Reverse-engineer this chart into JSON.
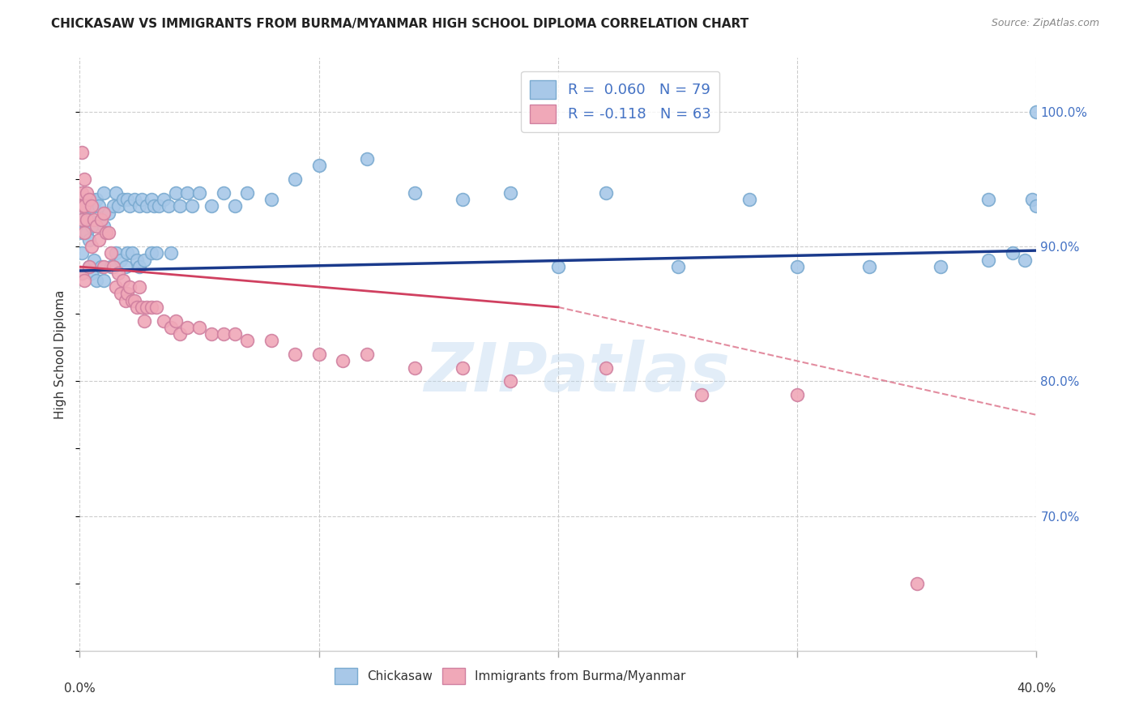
{
  "title": "CHICKASAW VS IMMIGRANTS FROM BURMA/MYANMAR HIGH SCHOOL DIPLOMA CORRELATION CHART",
  "source": "Source: ZipAtlas.com",
  "ylabel": "High School Diploma",
  "ytick_labels": [
    "100.0%",
    "90.0%",
    "80.0%",
    "70.0%"
  ],
  "ytick_values": [
    1.0,
    0.9,
    0.8,
    0.7
  ],
  "xlim": [
    0.0,
    0.4
  ],
  "ylim": [
    0.6,
    1.04
  ],
  "chickasaw_color": "#a8c8e8",
  "burma_color": "#f0a8b8",
  "trendline_chickasaw_color": "#1a3a8c",
  "trendline_burma_color": "#d04060",
  "watermark": "ZIPatlas",
  "chickasaw_scatter_x": [
    0.001,
    0.001,
    0.001,
    0.001,
    0.003,
    0.003,
    0.004,
    0.004,
    0.004,
    0.005,
    0.005,
    0.005,
    0.006,
    0.006,
    0.007,
    0.007,
    0.008,
    0.009,
    0.01,
    0.01,
    0.01,
    0.012,
    0.013,
    0.014,
    0.015,
    0.015,
    0.016,
    0.017,
    0.018,
    0.019,
    0.02,
    0.02,
    0.021,
    0.022,
    0.023,
    0.024,
    0.025,
    0.025,
    0.026,
    0.027,
    0.028,
    0.03,
    0.03,
    0.031,
    0.032,
    0.033,
    0.035,
    0.037,
    0.038,
    0.04,
    0.042,
    0.045,
    0.047,
    0.05,
    0.055,
    0.06,
    0.065,
    0.07,
    0.08,
    0.09,
    0.1,
    0.12,
    0.14,
    0.16,
    0.18,
    0.2,
    0.22,
    0.25,
    0.28,
    0.3,
    0.33,
    0.36,
    0.38,
    0.38,
    0.39,
    0.395,
    0.398,
    0.4,
    0.4
  ],
  "chickasaw_scatter_y": [
    0.92,
    0.91,
    0.895,
    0.88,
    0.93,
    0.91,
    0.92,
    0.905,
    0.885,
    0.935,
    0.915,
    0.88,
    0.93,
    0.89,
    0.935,
    0.875,
    0.93,
    0.885,
    0.94,
    0.915,
    0.875,
    0.925,
    0.885,
    0.93,
    0.94,
    0.895,
    0.93,
    0.89,
    0.935,
    0.885,
    0.935,
    0.895,
    0.93,
    0.895,
    0.935,
    0.89,
    0.93,
    0.885,
    0.935,
    0.89,
    0.93,
    0.935,
    0.895,
    0.93,
    0.895,
    0.93,
    0.935,
    0.93,
    0.895,
    0.94,
    0.93,
    0.94,
    0.93,
    0.94,
    0.93,
    0.94,
    0.93,
    0.94,
    0.935,
    0.95,
    0.96,
    0.965,
    0.94,
    0.935,
    0.94,
    0.885,
    0.94,
    0.885,
    0.935,
    0.885,
    0.885,
    0.885,
    0.935,
    0.89,
    0.895,
    0.89,
    0.935,
    0.93,
    1.0
  ],
  "burma_scatter_x": [
    0.001,
    0.001,
    0.001,
    0.001,
    0.001,
    0.002,
    0.002,
    0.002,
    0.002,
    0.003,
    0.003,
    0.004,
    0.004,
    0.005,
    0.005,
    0.006,
    0.007,
    0.008,
    0.009,
    0.01,
    0.01,
    0.011,
    0.012,
    0.013,
    0.014,
    0.015,
    0.016,
    0.017,
    0.018,
    0.019,
    0.02,
    0.021,
    0.022,
    0.023,
    0.024,
    0.025,
    0.026,
    0.027,
    0.028,
    0.03,
    0.032,
    0.035,
    0.038,
    0.04,
    0.042,
    0.045,
    0.05,
    0.055,
    0.06,
    0.065,
    0.07,
    0.08,
    0.09,
    0.1,
    0.11,
    0.12,
    0.14,
    0.16,
    0.18,
    0.22,
    0.26,
    0.3,
    0.35
  ],
  "burma_scatter_y": [
    0.97,
    0.94,
    0.93,
    0.92,
    0.88,
    0.95,
    0.93,
    0.91,
    0.875,
    0.94,
    0.92,
    0.935,
    0.885,
    0.93,
    0.9,
    0.92,
    0.915,
    0.905,
    0.92,
    0.925,
    0.885,
    0.91,
    0.91,
    0.895,
    0.885,
    0.87,
    0.88,
    0.865,
    0.875,
    0.86,
    0.865,
    0.87,
    0.86,
    0.86,
    0.855,
    0.87,
    0.855,
    0.845,
    0.855,
    0.855,
    0.855,
    0.845,
    0.84,
    0.845,
    0.835,
    0.84,
    0.84,
    0.835,
    0.835,
    0.835,
    0.83,
    0.83,
    0.82,
    0.82,
    0.815,
    0.82,
    0.81,
    0.81,
    0.8,
    0.81,
    0.79,
    0.79,
    0.65
  ],
  "trendline_chickasaw_x0": 0.0,
  "trendline_chickasaw_x1": 0.4,
  "trendline_chickasaw_y0": 0.882,
  "trendline_chickasaw_y1": 0.897,
  "trendline_burma_solid_x0": 0.0,
  "trendline_burma_solid_x1": 0.2,
  "trendline_burma_solid_y0": 0.885,
  "trendline_burma_solid_y1": 0.855,
  "trendline_burma_dashed_x0": 0.2,
  "trendline_burma_dashed_x1": 0.4,
  "trendline_burma_dashed_y0": 0.855,
  "trendline_burma_dashed_y1": 0.775
}
